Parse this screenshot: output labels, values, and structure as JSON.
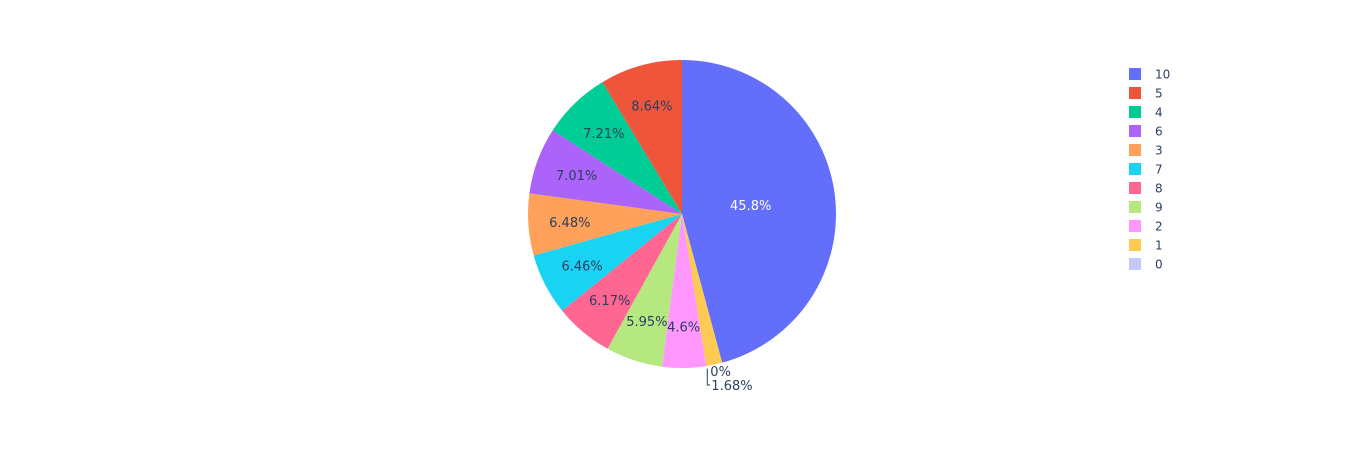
{
  "chart_data": {
    "type": "pie",
    "direction": "clockwise",
    "legend_position": "right",
    "slices": [
      {
        "label": "10",
        "value": 45.8,
        "text": "45.8%",
        "color": "#636efa",
        "text_color": "#ffffff"
      },
      {
        "label": "1",
        "value": 1.68,
        "text": "1.68%",
        "color": "#fecb52",
        "text_color": "#2a3f5f"
      },
      {
        "label": "0",
        "value": 0.0,
        "text": "0%",
        "color": "#c7c8fa",
        "text_color": "#2a3f5f"
      },
      {
        "label": "2",
        "value": 4.6,
        "text": "4.6%",
        "color": "#ff97ff",
        "text_color": "#2a3f5f"
      },
      {
        "label": "9",
        "value": 5.95,
        "text": "5.95%",
        "color": "#b6e880",
        "text_color": "#2a3f5f"
      },
      {
        "label": "8",
        "value": 6.17,
        "text": "6.17%",
        "color": "#ff6692",
        "text_color": "#2a3f5f"
      },
      {
        "label": "7",
        "value": 6.46,
        "text": "6.46%",
        "color": "#19d3f3",
        "text_color": "#2a3f5f"
      },
      {
        "label": "3",
        "value": 6.48,
        "text": "6.48%",
        "color": "#ffa15a",
        "text_color": "#2a3f5f"
      },
      {
        "label": "6",
        "value": 7.01,
        "text": "7.01%",
        "color": "#ab63fa",
        "text_color": "#2a3f5f"
      },
      {
        "label": "4",
        "value": 7.21,
        "text": "7.21%",
        "color": "#00cc96",
        "text_color": "#2a3f5f"
      },
      {
        "label": "5",
        "value": 8.64,
        "text": "8.64%",
        "color": "#ef553b",
        "text_color": "#2a3f5f"
      }
    ],
    "legend": [
      {
        "label": "10",
        "color": "#636efa"
      },
      {
        "label": "5",
        "color": "#ef553b"
      },
      {
        "label": "4",
        "color": "#00cc96"
      },
      {
        "label": "6",
        "color": "#ab63fa"
      },
      {
        "label": "3",
        "color": "#ffa15a"
      },
      {
        "label": "7",
        "color": "#19d3f3"
      },
      {
        "label": "8",
        "color": "#ff6692"
      },
      {
        "label": "9",
        "color": "#b6e880"
      },
      {
        "label": "2",
        "color": "#ff97ff"
      },
      {
        "label": "1",
        "color": "#fecb52"
      },
      {
        "label": "0",
        "color": "#c7c8fa"
      }
    ]
  }
}
